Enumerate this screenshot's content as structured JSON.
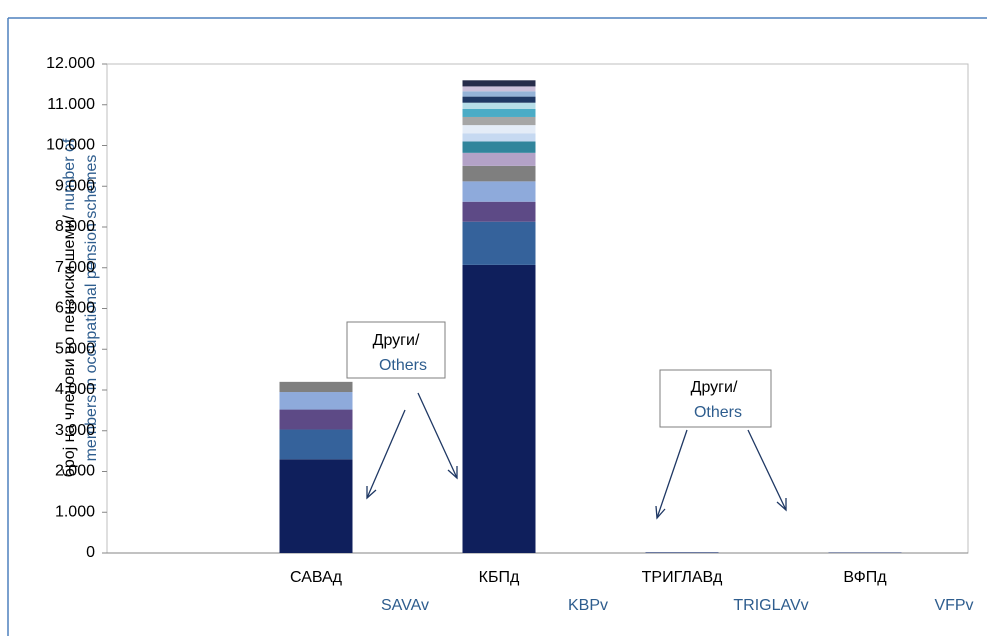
{
  "chart_data": {
    "type": "bar",
    "stacked": true,
    "y_label": [
      "број на членови во пензиски шеми/",
      " number of",
      "members in occupational pension schemes"
    ],
    "categories": [
      "САВАд",
      "КБПд",
      "ТРИГЛАВд",
      "ВФПд"
    ],
    "categories_en": [
      "SAVAv",
      "KBPv",
      "TRIGLAVv",
      "VFPv"
    ],
    "annotations": [
      {
        "text": [
          "Други/",
          "Others"
        ]
      },
      {
        "text": [
          "Други/",
          "Others"
        ]
      }
    ],
    "ylim": [
      0,
      12000
    ],
    "yticks": [
      0,
      {
        "value": 1000,
        "label": "1.000"
      },
      {
        "value": 2000,
        "label": "2.000"
      },
      {
        "value": 3000,
        "label": "3.000"
      },
      {
        "value": 4000,
        "label": "4.000"
      },
      {
        "value": 5000,
        "label": "5.000"
      },
      {
        "value": 6000,
        "label": "6.000"
      },
      {
        "value": 7000,
        "label": "7.000"
      },
      {
        "value": 8000,
        "label": "8.000"
      },
      {
        "value": 9000,
        "label": "9.000"
      },
      {
        "value": 10000,
        "label": "10.000"
      },
      {
        "value": 11000,
        "label": "11.000"
      },
      {
        "value": 12000,
        "label": "12.000"
      }
    ],
    "series": [
      {
        "color": "#0f1f5c",
        "values": [
          2300,
          7070,
          10,
          8
        ]
      },
      {
        "color": "#35629b",
        "values": [
          730,
          1060,
          5,
          4
        ]
      },
      {
        "color": "#5d4a86",
        "values": [
          490,
          490,
          3,
          2
        ]
      },
      {
        "color": "#8eaadb",
        "values": [
          430,
          500,
          2,
          1
        ]
      },
      {
        "color": "#7f7f7f",
        "values": [
          250,
          380,
          0,
          0
        ]
      },
      {
        "color": "#b3a2c7",
        "values": [
          0,
          320,
          0,
          0
        ]
      },
      {
        "color": "#31859c",
        "values": [
          0,
          280,
          0,
          0
        ]
      },
      {
        "color": "#c6d9f1",
        "values": [
          0,
          200,
          0,
          0
        ]
      },
      {
        "color": "#e4ecf7",
        "values": [
          0,
          200,
          0,
          0
        ]
      },
      {
        "color": "#a6a6a6",
        "values": [
          0,
          200,
          0,
          0
        ]
      },
      {
        "color": "#4bacc6",
        "values": [
          0,
          200,
          0,
          0
        ]
      },
      {
        "color": "#b7dee8",
        "values": [
          0,
          150,
          0,
          0
        ]
      },
      {
        "color": "#1f3864",
        "values": [
          0,
          150,
          0,
          0
        ]
      },
      {
        "color": "#95b3d7",
        "values": [
          0,
          130,
          0,
          0
        ]
      },
      {
        "color": "#ccc0da",
        "values": [
          0,
          120,
          0,
          0
        ]
      },
      {
        "color": "#262c4a",
        "values": [
          0,
          150,
          0,
          0
        ]
      }
    ]
  }
}
